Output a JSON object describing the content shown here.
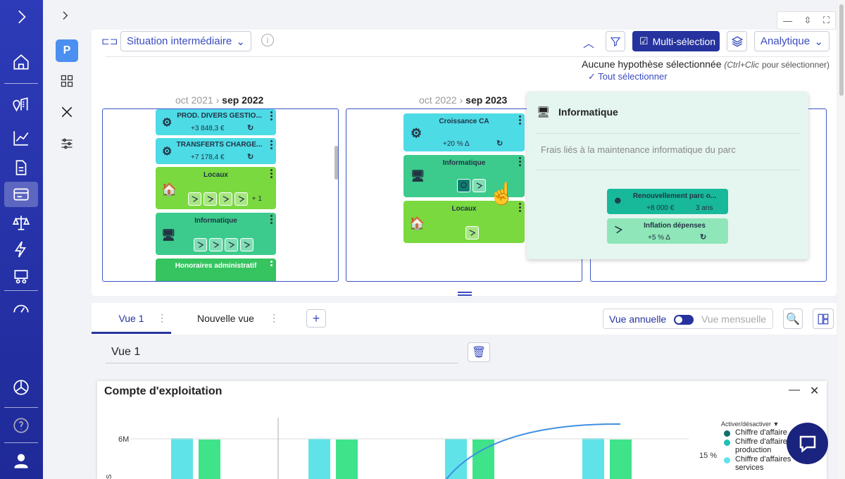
{
  "sidebar": {
    "items": [
      "chevron-right",
      "home",
      "map",
      "chart-line",
      "document",
      "card",
      "scale",
      "lightning",
      "people",
      "gauge",
      "pie",
      "help",
      "user"
    ]
  },
  "toolbar": {
    "situation": "Situation intermédiaire",
    "multi": "Multi-sélection",
    "analytique": "Analytique",
    "none_selected": "Aucune hypothèse sélectionnée",
    "hint": "(Ctrl+Clic",
    "hint2": "pour sélectionner)",
    "select_all": "Tout sélectionner"
  },
  "columns": [
    {
      "from": "oct 2021",
      "to": "sep 2022"
    },
    {
      "from": "oct 2022",
      "to": "sep 2023"
    }
  ],
  "cards": {
    "prod": "PROD. DIVERS GESTIO...",
    "prod_val": "+3 848,3 €",
    "transferts": "TRANSFERTS CHARGE...",
    "transferts_val": "+7 178,4 €",
    "locaux": "Locaux",
    "locaux_more": "+ 1",
    "informatique": "Informatique",
    "honoraires": "Honoraires administratif",
    "croissance": "Croissance CA",
    "croissance_val": "+20 % Δ"
  },
  "tooltip": {
    "title": "Informatique",
    "desc": "Frais liés à la maintenance informatique du parc",
    "renouv": "Renouvellement parc o...",
    "renouv_val": "+8 000 €",
    "renouv_dur": "3 ans",
    "inflation": "Inflation dépenses",
    "inflation_val": "+5 % Δ"
  },
  "views": {
    "tab1": "Vue 1",
    "tab2": "Nouvelle vue",
    "annual": "Vue annuelle",
    "monthly": "Vue mensuelle",
    "name": "Vue 1"
  },
  "chart": {
    "title": "Compte d'exploitation",
    "y_tick": "6M",
    "pct_tick": "15 %",
    "legend_toggle": "Activer/désactiver ▼",
    "legend": [
      "Chiffre d'affaire",
      "Chiffre d'affaire production",
      "Chiffre d'affaires services"
    ],
    "legend_colors": [
      "#0f6e6e",
      "#1fbfb3",
      "#5fe3e8"
    ]
  },
  "chart_data": {
    "type": "bar",
    "series": [
      {
        "name": "Chiffre d'affaires services",
        "values": [
          6.1,
          6.05,
          6.05,
          6.1
        ]
      },
      {
        "name": "Chiffre d'affaire production",
        "values": [
          5.9,
          5.9,
          5.9,
          5.9
        ]
      }
    ]
  }
}
